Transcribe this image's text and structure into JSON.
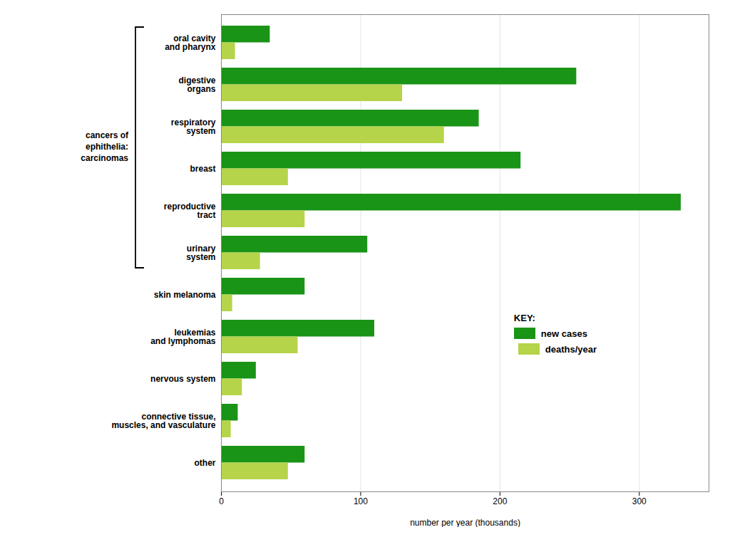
{
  "chart_data": {
    "type": "bar",
    "orientation": "horizontal",
    "categories": [
      "other",
      "connective tissue,\nmuscles, and vasculature",
      "nervous system",
      "leukemias\nand lymphomas",
      "skin melanoma",
      "urinary\nsystem",
      "reproductive\ntract",
      "breast",
      "respiratory\nsystem",
      "digestive\norgans",
      "oral cavity\nand pharynx"
    ],
    "series": [
      {
        "name": "new cases",
        "color": "#1a9416",
        "values": [
          60,
          12,
          25,
          110,
          60,
          105,
          330,
          215,
          185,
          255,
          35
        ]
      },
      {
        "name": "deaths/year",
        "color": "#b5d44a",
        "values": [
          48,
          7,
          15,
          55,
          8,
          28,
          60,
          48,
          160,
          130,
          10
        ]
      }
    ],
    "xlabel": "number per year (thousands)",
    "xlim": [
      0,
      350
    ],
    "xticks": [
      0,
      100,
      200,
      300
    ],
    "grid": true,
    "legend": "lower right",
    "annotations": [
      {
        "text": "cancers of\nephithelia:\ncarcinomas",
        "from": "urinary\nsystem",
        "to": "oral cavity\nand pharynx"
      },
      {
        "text": "KEY:"
      }
    ]
  }
}
